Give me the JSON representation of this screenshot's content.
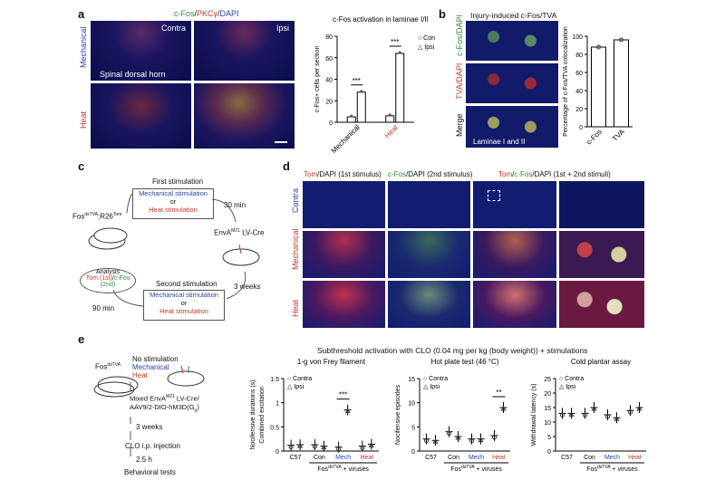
{
  "colors": {
    "red": "#c0392b",
    "green": "#2e8b3a",
    "blue": "#2c3ea8",
    "dark_field": "#0a0d4a"
  },
  "panel_a": {
    "letter": "a",
    "header": {
      "cfos": "c-Fos",
      "sep1": "/",
      "pkc": "PKCγ",
      "sep2": "/",
      "dapi": "DAPI"
    },
    "col_contra": "Contra",
    "col_ipsi": "Ipsi",
    "row_mech": "Mechanical",
    "row_heat": "Heat",
    "region": "Spinal dorsal horn",
    "chart_title": "c-Fos activation in laminae I/II"
  },
  "panel_b": {
    "letter": "b",
    "title": "Injury-induced c-Fos/TVA",
    "row1": "c-Fos/DAPI",
    "row2": "TVA/DAPI",
    "row3": "Merge",
    "region": "Laminae I and II",
    "ylabel": "Percentage of c-Fos/TVA colocalization"
  },
  "panel_c": {
    "letter": "c",
    "first": "First stimulation",
    "mech": "Mechanical stimulation",
    "or": "or",
    "heat": "Heat stimulation",
    "mouse": "Fos",
    "mouse_sup1": "dsTVA",
    "mouse_mid": ";R26",
    "mouse_sup2": "Tom",
    "t30": "30 min",
    "virus": "EnvA",
    "virus_sup": "M21",
    "virus_rest": " LV-Cre",
    "weeks": "3 weeks",
    "second": "Second stimulation",
    "t90": "90 min",
    "analysis": "Analysis",
    "analysis_tom": "Tom (1st)",
    "analysis_sep": "/",
    "analysis_fos": "c-Fos (2nd)"
  },
  "panel_d": {
    "letter": "d",
    "h1_tom": "Tom",
    "h1_rest": "/DAPI (1st stimulus)",
    "h2_fos": "c-Fos",
    "h2_rest": "/DAPI (2nd stimulus)",
    "h3_tom": "Tom",
    "h3_sep": "/",
    "h3_fos": "c-Fos",
    "h3_rest": "/DAPI (1st + 2nd stimuli)",
    "row_contra": "Contra",
    "row_mech": "Mechanical",
    "row_heat": "Heat"
  },
  "panel_e": {
    "letter": "e",
    "mouse": "Fos",
    "mouse_sup": "dsTVA",
    "stim_none": "No stimulation",
    "stim_mech": "Mechanical",
    "stim_heat": "Heat",
    "mixed1": "Mixed EnvA",
    "mixed_sup": "M21",
    "mixed2": " LV-Cre/",
    "mixed3": "AAV9/2-DIO-hM3D(G",
    "mixed3_sub": "q",
    "mixed3_end": ")",
    "weeks": "3 weeks",
    "clo": "CLO i.p. injection",
    "h25": "2.5 h",
    "behav": "Behavioral tests",
    "main_title": "Subthreshold activation with CLO (0.04 mg per kg (body weight)) + stimulations",
    "fos_group": "Fos",
    "fos_group_sup": "dsTVA",
    "fos_group_rest": " + viruses"
  },
  "chart_data": [
    {
      "id": "a_bar",
      "type": "bar",
      "title": "c-Fos activation in laminae I/II",
      "ylabel": "c-Fos+ cells per section",
      "categories": [
        "Mechanical",
        "Heat"
      ],
      "series": [
        {
          "name": "Contra",
          "values": [
            5,
            6
          ]
        },
        {
          "name": "Ipsi",
          "values": [
            28,
            64
          ]
        }
      ],
      "ylim": [
        0,
        80
      ],
      "yticks": [
        0,
        20,
        40,
        60,
        80
      ],
      "significance": [
        "***",
        "***"
      ],
      "legend": "top-right"
    },
    {
      "id": "b_bar",
      "type": "bar",
      "ylabel": "Percentage of c-Fos/TVA colocalization",
      "categories": [
        "c-Fos",
        "TVA"
      ],
      "values": [
        88,
        96
      ],
      "ylim": [
        0,
        100
      ],
      "yticks": [
        0,
        20,
        40,
        60,
        80,
        100
      ]
    },
    {
      "id": "e_vonfrey",
      "type": "scatter",
      "title": "1-g von Frey filament",
      "ylabel": "Combined excitation",
      "ylabel2": "Nocifensive durations (s)",
      "categories": [
        "C57",
        "Con",
        "Mech",
        "Heat"
      ],
      "series": [
        {
          "name": "Contra",
          "values": [
            0.12,
            0.13,
            0.08,
            0.1
          ]
        },
        {
          "name": "Ipsi",
          "values": [
            0.13,
            0.1,
            0.85,
            0.14
          ]
        }
      ],
      "ylim": [
        0,
        1.5
      ],
      "yticks": [
        0,
        0.5,
        1.0,
        1.5
      ],
      "significance": {
        "category": "Mech",
        "label": "***"
      },
      "legend": "top-left"
    },
    {
      "id": "e_hotplate",
      "type": "scatter",
      "title": "Hot plate test (46 °C)",
      "ylabel": "Nocifensive episodes",
      "categories": [
        "C57",
        "Con",
        "Mech",
        "Heat"
      ],
      "series": [
        {
          "name": "Contra",
          "values": [
            2.5,
            4,
            2.5,
            3.2
          ]
        },
        {
          "name": "Ipsi",
          "values": [
            2.2,
            3,
            2.5,
            9
          ]
        }
      ],
      "ylim": [
        0,
        15
      ],
      "yticks": [
        0,
        5,
        10,
        15
      ],
      "significance": {
        "category": "Heat",
        "label": "**"
      },
      "legend": "top-left"
    },
    {
      "id": "e_coldplantar",
      "type": "scatter",
      "title": "Cold plantar assay",
      "ylabel": "Withdrawal latency (s)",
      "categories": [
        "C57",
        "Con",
        "Mech",
        "Heat"
      ],
      "series": [
        {
          "name": "Contra",
          "values": [
            13,
            13,
            12.5,
            14
          ]
        },
        {
          "name": "Ipsi",
          "values": [
            13,
            15,
            11.5,
            15
          ]
        }
      ],
      "ylim": [
        0,
        25
      ],
      "yticks": [
        0,
        5,
        10,
        15,
        20,
        25
      ],
      "legend": "top-left"
    }
  ]
}
